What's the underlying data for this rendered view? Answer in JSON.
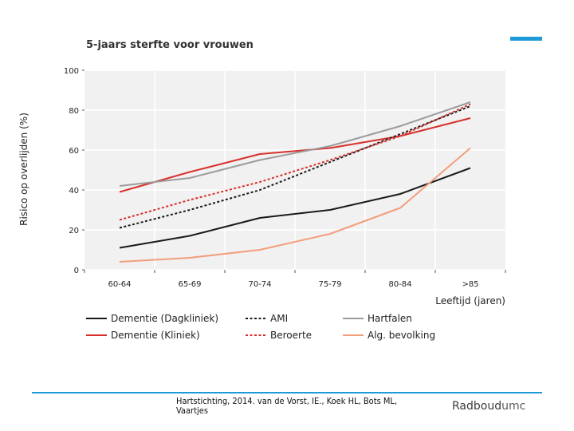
{
  "chart_data": {
    "type": "line",
    "title": "5-jaars sterfte voor vrouwen",
    "xlabel": "Leeftijd (jaren)",
    "ylabel": "Risico op overlijden (%)",
    "categories": [
      "60-64",
      "65-69",
      "70-74",
      "75-79",
      "80-84",
      ">85"
    ],
    "yticks": [
      "0",
      "20",
      "40",
      "60",
      "80",
      "100"
    ],
    "ylim": [
      0,
      100
    ],
    "grid": true,
    "legend_position": "bottom",
    "series": [
      {
        "name": "Dementie (Dagkliniek)",
        "style": "solid",
        "color": "#1a1a1a",
        "values": [
          11,
          17,
          26,
          30,
          38,
          51
        ]
      },
      {
        "name": "Dementie (Kliniek)",
        "style": "solid",
        "color": "#d8312c",
        "values": [
          39,
          49,
          58,
          61,
          67,
          76
        ]
      },
      {
        "name": "AMI",
        "style": "dotted",
        "color": "#1a1a1a",
        "values": [
          21,
          30,
          40,
          54,
          68,
          82
        ]
      },
      {
        "name": "Beroerte",
        "style": "dotted",
        "color": "#d8312c",
        "values": [
          25,
          35,
          44,
          55,
          67,
          83
        ]
      },
      {
        "name": "Hartfalen",
        "style": "solid",
        "color": "#9c9c9c",
        "values": [
          42,
          46,
          55,
          62,
          72,
          84
        ]
      },
      {
        "name": "Alg. bevolking",
        "style": "solid",
        "color": "#f29e7c",
        "values": [
          4,
          6,
          10,
          18,
          31,
          61
        ]
      }
    ]
  },
  "footer": {
    "citation": "Hartstichting, 2014. van de Vorst, IE., Koek HL, Bots ML, Vaartjes",
    "brand_prefix": "Radboud",
    "brand_suffix": "umc"
  },
  "colors": {
    "accent": "#1e9ad6",
    "plot_background": "#f1f1f1",
    "gridline": "#ffffff"
  }
}
